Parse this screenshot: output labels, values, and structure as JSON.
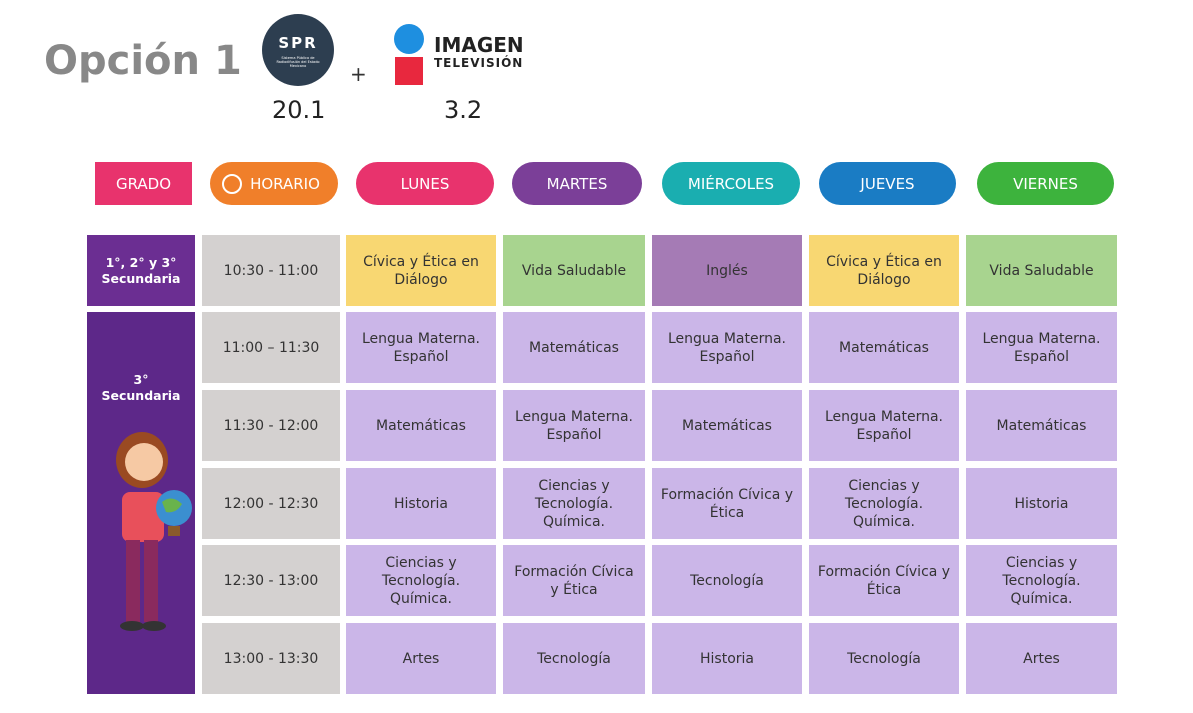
{
  "header": {
    "title": "Opción 1",
    "plus": "+",
    "logos": [
      {
        "name": "SPR",
        "caption": "Sistema Público de Radiodifusión del Estado Mexicano",
        "channel": "20.1"
      },
      {
        "name": "IMAGEN",
        "subname": "TELEVISIÓN",
        "channel": "3.2"
      }
    ]
  },
  "table": {
    "columns": [
      "GRADO",
      "HORARIO",
      "LUNES",
      "MARTES",
      "MIÉRCOLES",
      "JUEVES",
      "VIERNES"
    ],
    "groups": [
      {
        "grade": "1°, 2° y 3° Secundaria",
        "rows": [
          {
            "time": "10:30 - 11:00",
            "classes": [
              "Cívica y Ética en Diálogo",
              "Vida Saludable",
              "Inglés",
              "Cívica y Ética en Diálogo",
              "Vida Saludable"
            ]
          }
        ]
      },
      {
        "grade": "3° Secundaria",
        "rows": [
          {
            "time": "11:00 – 11:30",
            "classes": [
              "Lengua Materna. Español",
              "Matemáticas",
              "Lengua Materna. Español",
              "Matemáticas",
              "Lengua Materna. Español"
            ]
          },
          {
            "time": "11:30 - 12:00",
            "classes": [
              "Matemáticas",
              "Lengua Materna. Español",
              "Matemáticas",
              "Lengua Materna. Español",
              "Matemáticas"
            ]
          },
          {
            "time": "12:00 - 12:30",
            "classes": [
              "Historia",
              "Ciencias y Tecnología. Química.",
              "Formación Cívica y Ética",
              "Ciencias y Tecnología. Química.",
              "Historia"
            ]
          },
          {
            "time": "12:30 - 13:00",
            "classes": [
              "Ciencias y Tecnología. Química.",
              "Formación Cívica y Ética",
              "Tecnología",
              "Formación Cívica y Ética",
              "Ciencias y Tecnología. Química."
            ]
          },
          {
            "time": "13:00 - 13:30",
            "classes": [
              "Artes",
              "Tecnología",
              "Historia",
              "Tecnología",
              "Artes"
            ]
          }
        ]
      }
    ]
  }
}
